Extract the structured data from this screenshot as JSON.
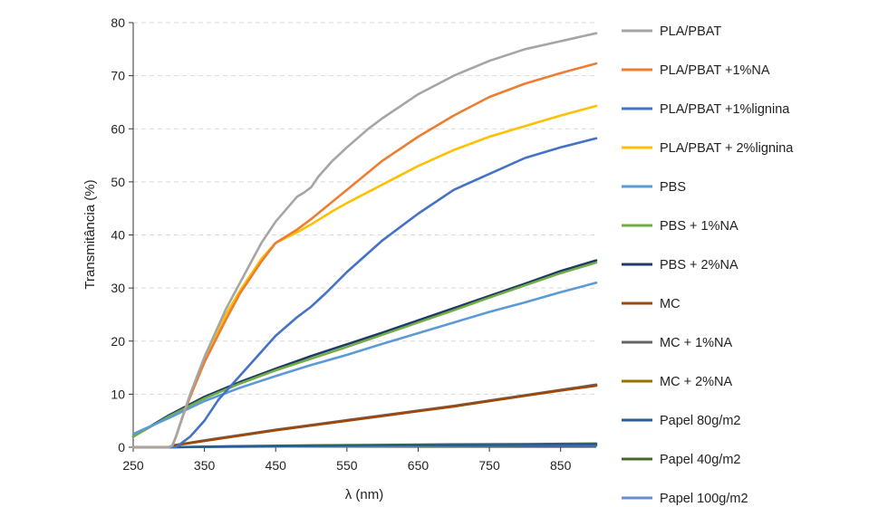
{
  "chart_data": {
    "type": "line",
    "xlabel": "λ (nm)",
    "ylabel": "Transmitância (%)",
    "xlim": [
      250,
      900
    ],
    "ylim": [
      0,
      80
    ],
    "xticks": [
      250,
      350,
      450,
      550,
      650,
      750,
      850
    ],
    "yticks": [
      0,
      10,
      20,
      30,
      40,
      50,
      60,
      70,
      80
    ],
    "grid": "horizontal dashed",
    "legend_position": "right",
    "series": [
      {
        "name": "PLA/PBAT",
        "color": "#a5a5a5",
        "x": [
          250,
          300,
          305,
          310,
          320,
          330,
          350,
          380,
          400,
          430,
          450,
          480,
          490,
          500,
          510,
          530,
          550,
          580,
          600,
          650,
          700,
          750,
          800,
          850,
          900
        ],
        "y": [
          0,
          0,
          0.3,
          2,
          6,
          10,
          17,
          26,
          31,
          38.5,
          42.5,
          47.2,
          48,
          49,
          51,
          54,
          56.5,
          60,
          62,
          66.5,
          70,
          72.8,
          75,
          76.5,
          78
        ]
      },
      {
        "name": "PLA/PBAT +1%NA",
        "color": "#ed7d31",
        "x": [
          250,
          300,
          305,
          310,
          320,
          330,
          350,
          380,
          400,
          430,
          450,
          480,
          500,
          550,
          600,
          650,
          700,
          750,
          800,
          850,
          900
        ],
        "y": [
          0,
          0,
          0.3,
          2,
          6,
          9.5,
          16,
          24,
          29,
          35,
          38.5,
          41,
          43,
          48.5,
          54,
          58.5,
          62.5,
          66,
          68.5,
          70.5,
          72.3
        ]
      },
      {
        "name": "PLA/PBAT +1%lignina",
        "color": "#4472c4",
        "x": [
          250,
          310,
          320,
          330,
          350,
          370,
          400,
          430,
          450,
          480,
          490,
          500,
          520,
          550,
          600,
          650,
          700,
          750,
          800,
          850,
          900
        ],
        "y": [
          0,
          0,
          1,
          2,
          5,
          9,
          13.5,
          18,
          21,
          24.5,
          25.5,
          26.5,
          29,
          33,
          39,
          44,
          48.5,
          51.5,
          54.5,
          56.5,
          58.2
        ]
      },
      {
        "name": "PLA/PBAT + 2%lignina",
        "color": "#ffc000",
        "x": [
          250,
          300,
          305,
          310,
          320,
          330,
          350,
          380,
          400,
          430,
          450,
          480,
          500,
          530,
          550,
          600,
          650,
          700,
          750,
          800,
          850,
          900
        ],
        "y": [
          0,
          0,
          0.3,
          2,
          6,
          10,
          16.5,
          25,
          29.5,
          35.5,
          38.5,
          40.5,
          42,
          44.5,
          46,
          49.5,
          53,
          56,
          58.5,
          60.5,
          62.5,
          64.3
        ]
      },
      {
        "name": "PBS",
        "color": "#5b9bd5",
        "x": [
          250,
          300,
          350,
          400,
          450,
          500,
          550,
          600,
          650,
          700,
          750,
          800,
          850,
          900
        ],
        "y": [
          2.5,
          5.5,
          8.7,
          11.2,
          13.4,
          15.5,
          17.4,
          19.5,
          21.5,
          23.5,
          25.5,
          27.3,
          29.2,
          31
        ]
      },
      {
        "name": "PBS + 1%NA",
        "color": "#70ad47",
        "x": [
          250,
          300,
          350,
          400,
          450,
          500,
          550,
          600,
          650,
          700,
          750,
          800,
          850,
          900
        ],
        "y": [
          2,
          5.8,
          9.2,
          12,
          14.5,
          16.7,
          18.9,
          21.2,
          23.5,
          25.8,
          28.2,
          30.5,
          32.8,
          34.8
        ]
      },
      {
        "name": "PBS + 2%NA",
        "color": "#203864",
        "x": [
          250,
          300,
          350,
          400,
          450,
          500,
          550,
          600,
          650,
          700,
          750,
          800,
          850,
          900
        ],
        "y": [
          2,
          6,
          9.5,
          12.3,
          14.8,
          17.2,
          19.4,
          21.6,
          23.9,
          26.2,
          28.5,
          30.8,
          33.2,
          35.2
        ]
      },
      {
        "name": "MC",
        "color": "#9e480e",
        "x": [
          250,
          300,
          305,
          350,
          400,
          450,
          500,
          550,
          600,
          650,
          700,
          750,
          800,
          850,
          900
        ],
        "y": [
          0,
          0,
          0.3,
          1.2,
          2.2,
          3.2,
          4.1,
          5,
          5.9,
          6.8,
          7.7,
          8.7,
          9.7,
          10.7,
          11.6
        ]
      },
      {
        "name": "MC + 1%NA",
        "color": "#636363",
        "x": [
          250,
          300,
          305,
          350,
          400,
          450,
          500,
          550,
          600,
          650,
          700,
          750,
          800,
          850,
          900
        ],
        "y": [
          0,
          0,
          0.3,
          1.3,
          2.3,
          3.3,
          4.2,
          5.1,
          6,
          6.9,
          7.8,
          8.8,
          9.8,
          10.8,
          11.8
        ]
      },
      {
        "name": "MC + 2%NA",
        "color": "#997300",
        "x": [
          250,
          300,
          305,
          350,
          400,
          450,
          500,
          550,
          600,
          650,
          700,
          750,
          800,
          850,
          900
        ],
        "y": [
          0,
          0,
          0.3,
          1.2,
          2.2,
          3.2,
          4.1,
          5,
          5.9,
          6.8,
          7.7,
          8.7,
          9.7,
          10.7,
          11.6
        ]
      },
      {
        "name": "Papel 80g/m2",
        "color": "#255e91",
        "x": [
          250,
          300,
          400,
          500,
          600,
          700,
          800,
          900
        ],
        "y": [
          0,
          0,
          0.15,
          0.25,
          0.35,
          0.4,
          0.45,
          0.5
        ]
      },
      {
        "name": "Papel 40g/m2",
        "color": "#43682b",
        "x": [
          250,
          300,
          400,
          500,
          600,
          700,
          800,
          900
        ],
        "y": [
          0,
          0,
          0.2,
          0.35,
          0.45,
          0.55,
          0.6,
          0.7
        ]
      },
      {
        "name": "Papel 100g/m2",
        "color": "#698ed0",
        "x": [
          250,
          300,
          400,
          500,
          600,
          700,
          800,
          900
        ],
        "y": [
          0,
          0,
          0.1,
          0.15,
          0.2,
          0.25,
          0.3,
          0.3
        ]
      }
    ]
  }
}
